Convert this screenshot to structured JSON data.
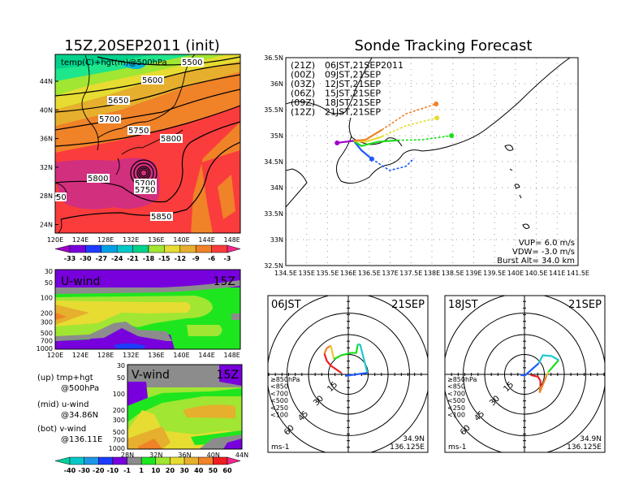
{
  "left": {
    "title": "15Z,20SEP2011 (init)",
    "map_label": "temp(C)+hgt(m)@500hPa",
    "lat_ticks": [
      "44N",
      "40N",
      "36N",
      "32N",
      "28N",
      "24N"
    ],
    "lon_ticks": [
      "120E",
      "124E",
      "128E",
      "132E",
      "136E",
      "140E",
      "144E",
      "148E"
    ],
    "contour_labels": [
      "5500",
      "5600",
      "5650",
      "5700",
      "5750",
      "5800",
      "5800",
      "5700",
      "5750",
      "5850",
      "50"
    ],
    "temp_colorbar": {
      "labels": [
        "-33",
        "-30",
        "-27",
        "-24",
        "-21",
        "-18",
        "-15",
        "-12",
        "-9",
        "-6",
        "-3"
      ],
      "colors": [
        "#a000c8",
        "#7800dc",
        "#1e3cff",
        "#00a0e6",
        "#00c8c8",
        "#00d28c",
        "#a0e632",
        "#e6dc32",
        "#e6af2d",
        "#f08228",
        "#fa3c3c",
        "#f0288c"
      ]
    },
    "uwind": {
      "label": "U-wind",
      "time": "15Z",
      "p_ticks": [
        "30",
        "50",
        "100",
        "200",
        "300",
        "500",
        "700",
        "1000"
      ],
      "lon_ticks": [
        "120E",
        "124E",
        "128E",
        "132E",
        "136E",
        "140E",
        "144E",
        "148E"
      ]
    },
    "vwind": {
      "label": "V-wind",
      "time": "15Z",
      "p_ticks": [
        "30",
        "50",
        "100",
        "200",
        "300",
        "500",
        "700",
        "1000"
      ],
      "lat_ticks": [
        "28N",
        "32N",
        "36N",
        "40N",
        "44N"
      ]
    },
    "wind_colorbar": {
      "labels": [
        "-40",
        "-30",
        "-20",
        "-10",
        "-1",
        "1",
        "10",
        "20",
        "30",
        "40",
        "50",
        "60"
      ],
      "colors": [
        "#00d2a0",
        "#00c8c8",
        "#1e96e6",
        "#1e3cff",
        "#7800dc",
        "#8c8c8c",
        "#1ee61e",
        "#a0e632",
        "#e6dc32",
        "#e6af2d",
        "#f08228",
        "#f01e1e",
        "#f0288c"
      ]
    },
    "notes": [
      {
        "line1": "(up) tmp+hgt",
        "line2": "@500hPa"
      },
      {
        "line1": "(mid) u-wind",
        "line2": "@34.86N"
      },
      {
        "line1": "(bot) v-wind",
        "line2": "@136.11E"
      }
    ]
  },
  "sonde": {
    "title": "Sonde Tracking Forecast",
    "lat_ticks": [
      "36.5N",
      "36N",
      "35.5N",
      "35N",
      "34.5N",
      "34N",
      "33.5N",
      "33N",
      "32.5N"
    ],
    "lon_ticks": [
      "134.5E",
      "135E",
      "135.5E",
      "136E",
      "136.5E",
      "137E",
      "137.5E",
      "138E",
      "138.5E",
      "139E",
      "139.5E",
      "140E",
      "140.5E",
      "141E",
      "141.5E"
    ],
    "legend": [
      {
        "zone": "(21Z)",
        "label": "06JST,21SEP2011",
        "color": "#000000"
      },
      {
        "zone": "(00Z)",
        "label": "09JST,21SEP",
        "color": "#a000c8"
      },
      {
        "zone": "(03Z)",
        "label": "12JST,21SEP",
        "color": "#1e5aff"
      },
      {
        "zone": "(06Z)",
        "label": "15JST,21SEP",
        "color": "#1edc1e"
      },
      {
        "zone": "(09Z)",
        "label": "18JST,21SEP",
        "color": "#e6dc32"
      },
      {
        "zone": "(12Z)",
        "label": "21JST,21SEP",
        "color": "#f08228"
      }
    ],
    "vup": "VUP= 6.0 m/s",
    "vdw": "VDW= -3.0 m/s",
    "burst": "Burst Alt= 34.0 km",
    "launch": {
      "lon": 136.125,
      "lat": 34.9
    },
    "trajectories": [
      {
        "color": "#a000c8",
        "solid_until": 2,
        "dot_index": 2,
        "lon": [
          136.125,
          135.92,
          135.73
        ],
        "lat": [
          34.9,
          34.88,
          34.86
        ]
      },
      {
        "color": "#1e5aff",
        "solid_until": 2,
        "dot_index": 2,
        "lon": [
          136.125,
          136.31,
          136.56,
          136.99,
          137.38,
          137.57
        ],
        "lat": [
          34.9,
          34.72,
          34.55,
          34.33,
          34.41,
          34.56
        ]
      },
      {
        "color": "#1edc1e",
        "solid_until": 3,
        "dot_index": 5,
        "lon": [
          136.125,
          136.31,
          136.7,
          137.18,
          137.77,
          138.47
        ],
        "lat": [
          34.9,
          34.8,
          34.88,
          34.91,
          34.92,
          35.0
        ]
      },
      {
        "color": "#e6dc32",
        "solid_until": 2,
        "dot_index": 4,
        "lon": [
          136.125,
          136.41,
          136.8,
          137.38,
          138.12
        ],
        "lat": [
          34.9,
          34.88,
          34.98,
          35.19,
          35.34
        ]
      },
      {
        "color": "#f08228",
        "solid_until": 2,
        "dot_index": 4,
        "lon": [
          136.125,
          136.41,
          136.8,
          137.38,
          138.1
        ],
        "lat": [
          34.9,
          34.92,
          35.11,
          35.42,
          35.61
        ]
      }
    ]
  },
  "hodographs": [
    {
      "time": "06JST",
      "date": "21SEP",
      "units": "ms-1",
      "lat": "34.9N",
      "lon": "136.125E",
      "ring_labels": [
        "15",
        "30",
        "45",
        "60"
      ],
      "legend": [
        {
          "label": "≥850hPa",
          "color": "#f01e1e"
        },
        {
          "label": "<850",
          "color": "#f08228"
        },
        {
          "label": "<700",
          "color": "#e6c832"
        },
        {
          "label": "<500",
          "color": "#1edc1e"
        },
        {
          "label": "<250",
          "color": "#1ec8d2"
        },
        {
          "label": "<100",
          "color": "#1e5aff"
        }
      ],
      "segments": [
        {
          "color": "#f01e1e",
          "u": [
            -5.4,
            -13.2,
            -16.2,
            -18
          ],
          "v": [
            1.2,
            6.6,
            10.2,
            15.6
          ]
        },
        {
          "color": "#f08228",
          "u": [
            -18,
            -16.2,
            -13.2
          ],
          "v": [
            15.6,
            19.8,
            21.6
          ]
        },
        {
          "color": "#e6c832",
          "u": [
            -13.2,
            -10.8
          ],
          "v": [
            21.6,
            11.4
          ]
        },
        {
          "color": "#1edc1e",
          "u": [
            -10.8,
            -5.4,
            1.8,
            6,
            7.2
          ],
          "v": [
            11.4,
            14.4,
            16.2,
            16.2,
            22.8
          ]
        },
        {
          "color": "#1ec8d2",
          "u": [
            7.2,
            9,
            14.4
          ],
          "v": [
            22.8,
            22.2,
            1.2
          ]
        },
        {
          "color": "#1e5aff",
          "u": [
            14.4,
            -2.4
          ],
          "v": [
            1.2,
            -1.2
          ]
        }
      ]
    },
    {
      "time": "18JST",
      "date": "21SEP",
      "units": "ms-1",
      "lat": "34.9N",
      "lon": "136.125E",
      "ring_labels": [
        "15",
        "30",
        "45",
        "60"
      ],
      "legend": [
        {
          "label": "≥850hPa",
          "color": "#f01e1e"
        },
        {
          "label": "<850",
          "color": "#f08228"
        },
        {
          "label": "<700",
          "color": "#e6c832"
        },
        {
          "label": "<500",
          "color": "#1edc1e"
        },
        {
          "label": "<250",
          "color": "#1ec8d2"
        },
        {
          "label": "<100",
          "color": "#1e5aff"
        }
      ],
      "segments": [
        {
          "color": "#f01e1e",
          "u": [
            4.8,
            10.2,
            12,
            12
          ],
          "v": [
            -0.6,
            -1.8,
            -4.8,
            -9
          ]
        },
        {
          "color": "#f08228",
          "u": [
            12,
            11.4,
            16.8
          ],
          "v": [
            -9,
            -13.8,
            -0.6
          ]
        },
        {
          "color": "#e6c832",
          "u": [
            16.8,
            18
          ],
          "v": [
            -0.6,
            1.8
          ]
        },
        {
          "color": "#1edc1e",
          "u": [
            18,
            25.8
          ],
          "v": [
            1.8,
            10.8
          ]
        },
        {
          "color": "#1ec8d2",
          "u": [
            25.8,
            20.4,
            13.8,
            10.8
          ],
          "v": [
            10.8,
            13.8,
            14.4,
            8.4
          ]
        },
        {
          "color": "#1e5aff",
          "u": [
            10.8,
            0.6,
            -3
          ],
          "v": [
            8.4,
            -0.6,
            -0.6
          ]
        }
      ]
    }
  ]
}
